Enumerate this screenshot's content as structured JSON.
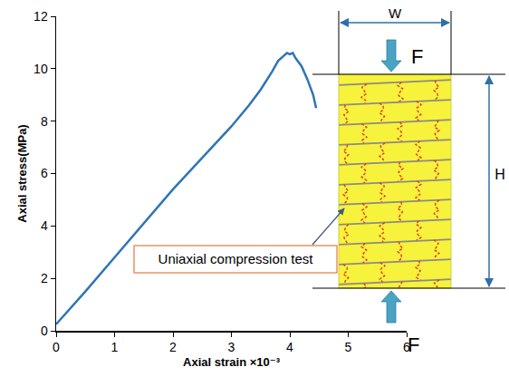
{
  "chart_data": {
    "type": "line",
    "x_label": "Axial strain ×10⁻³",
    "y_label": "Axial stress(MPa)",
    "x": [
      0,
      0.5,
      1,
      1.5,
      2,
      2.5,
      3,
      3.3,
      3.5,
      3.7,
      3.8,
      3.9,
      3.95,
      4.0,
      4.05,
      4.1,
      4.2,
      4.3,
      4.4,
      4.45
    ],
    "values": [
      0.25,
      1.5,
      2.8,
      4.1,
      5.4,
      6.6,
      7.8,
      8.6,
      9.2,
      9.9,
      10.3,
      10.5,
      10.6,
      10.55,
      10.6,
      10.4,
      10.1,
      9.6,
      9.0,
      8.5
    ],
    "color": "#2e75b6",
    "xlim": [
      0,
      6
    ],
    "xticks": [
      0,
      1,
      2,
      3,
      4,
      5,
      6
    ],
    "ylim": [
      0,
      12
    ],
    "yticks": [
      0,
      2,
      4,
      6,
      8,
      10,
      12
    ],
    "grid": false
  },
  "diagram": {
    "caption": "Uniaxial compression test",
    "width_label": "W",
    "height_label": "H",
    "force_top_label": "F",
    "force_bottom_label": "F"
  }
}
